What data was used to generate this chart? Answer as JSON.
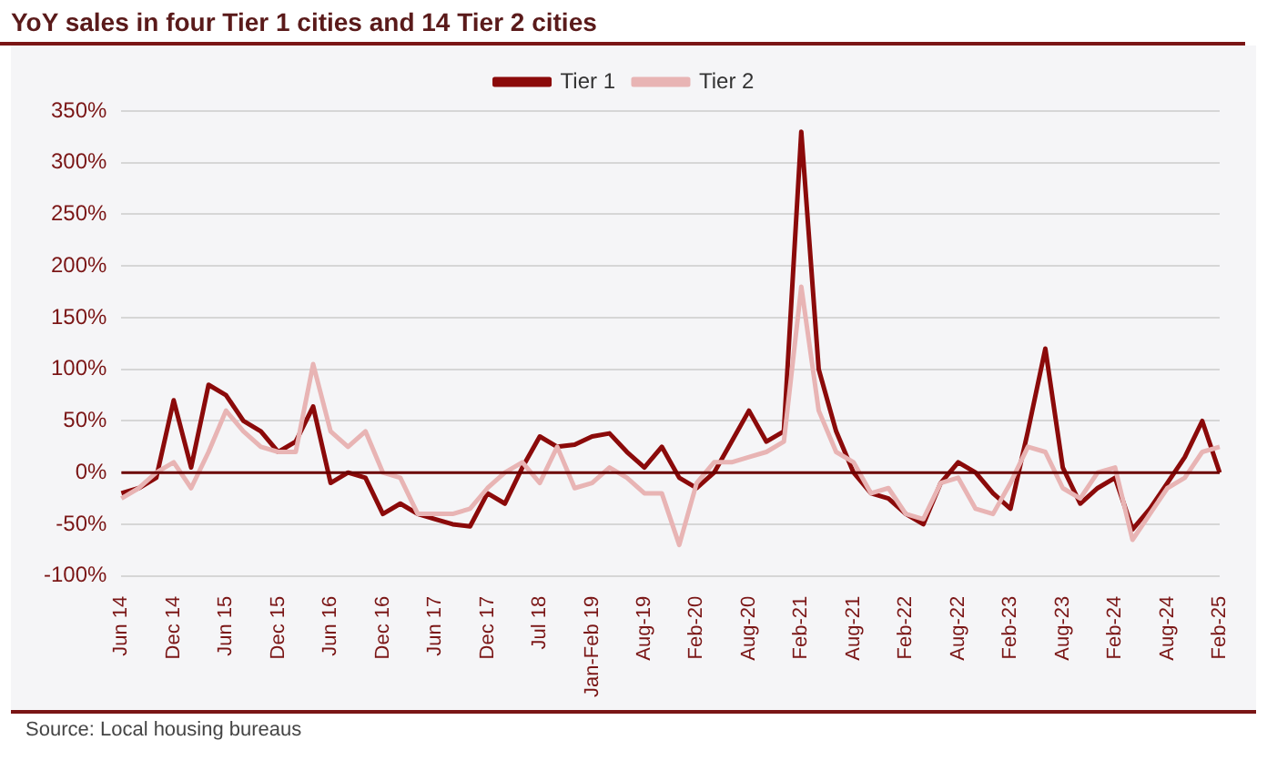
{
  "chart_data": {
    "type": "line",
    "title": "YoY sales in four Tier 1 cities and 14 Tier 2 cities",
    "annotations": [
      "Source: Local housing bureaus"
    ],
    "categories": [
      "Jun 14",
      null,
      null,
      "Dec 14",
      null,
      null,
      "Jun 15",
      null,
      null,
      "Dec 15",
      null,
      null,
      "Jun 16",
      null,
      null,
      "Dec 16",
      null,
      null,
      "Jun 17",
      null,
      null,
      "Dec 17",
      null,
      null,
      "Jul 18",
      null,
      null,
      "Jan-Feb 19",
      null,
      null,
      "Aug-19",
      null,
      null,
      "Feb-20",
      null,
      null,
      "Aug-20",
      null,
      null,
      "Feb-21",
      null,
      null,
      "Aug-21",
      null,
      null,
      "Feb-22",
      null,
      null,
      "Aug-22",
      null,
      null,
      "Feb-23",
      null,
      null,
      "Aug-23",
      null,
      null,
      "Feb-24",
      null,
      null,
      "Aug-24",
      null,
      null,
      "Feb-25"
    ],
    "series": [
      {
        "name": "Tier 1",
        "color": "#8b0a0a",
        "values": [
          -20,
          -15,
          -5,
          70,
          5,
          85,
          75,
          50,
          40,
          20,
          30,
          64,
          -10,
          0,
          -5,
          -40,
          -30,
          -40,
          -45,
          -50,
          -52,
          -20,
          -30,
          5,
          35,
          25,
          27,
          35,
          38,
          20,
          5,
          25,
          -5,
          -15,
          0,
          30,
          60,
          30,
          40,
          330,
          100,
          40,
          0,
          -20,
          -25,
          -40,
          -50,
          -10,
          10,
          0,
          -20,
          -35,
          40,
          120,
          5,
          -30,
          -15,
          -5,
          -55,
          -35,
          -10,
          15,
          50,
          0
        ]
      },
      {
        "name": "Tier 2",
        "color": "#e8b4b4",
        "values": [
          -25,
          -15,
          0,
          10,
          -15,
          20,
          60,
          40,
          25,
          20,
          20,
          105,
          40,
          25,
          40,
          0,
          -5,
          -40,
          -40,
          -40,
          -35,
          -15,
          0,
          10,
          -10,
          25,
          -15,
          -10,
          5,
          -5,
          -20,
          -20,
          -70,
          -10,
          10,
          10,
          15,
          20,
          30,
          180,
          60,
          20,
          10,
          -20,
          -15,
          -40,
          -45,
          -10,
          -5,
          -35,
          -40,
          -10,
          25,
          20,
          -15,
          -25,
          0,
          5,
          -65,
          -40,
          -15,
          -5,
          20,
          25
        ]
      }
    ],
    "ylim": [
      -100,
      350
    ],
    "yticks": [
      {
        "value": -100,
        "label": "-100%"
      },
      {
        "value": -50,
        "label": "-50%"
      },
      {
        "value": 0,
        "label": "0%"
      },
      {
        "value": 50,
        "label": "50%"
      },
      {
        "value": 100,
        "label": "100%"
      },
      {
        "value": 150,
        "label": "150%"
      },
      {
        "value": 200,
        "label": "200%"
      },
      {
        "value": 250,
        "label": "250%"
      },
      {
        "value": 300,
        "label": "300%"
      },
      {
        "value": 350,
        "label": "350%"
      }
    ],
    "ref_lines": [
      {
        "axis": "y",
        "value": 0,
        "color": "#6b0000"
      }
    ],
    "grid": "y",
    "legend": "top",
    "marker": "none",
    "line_style": "solid"
  }
}
